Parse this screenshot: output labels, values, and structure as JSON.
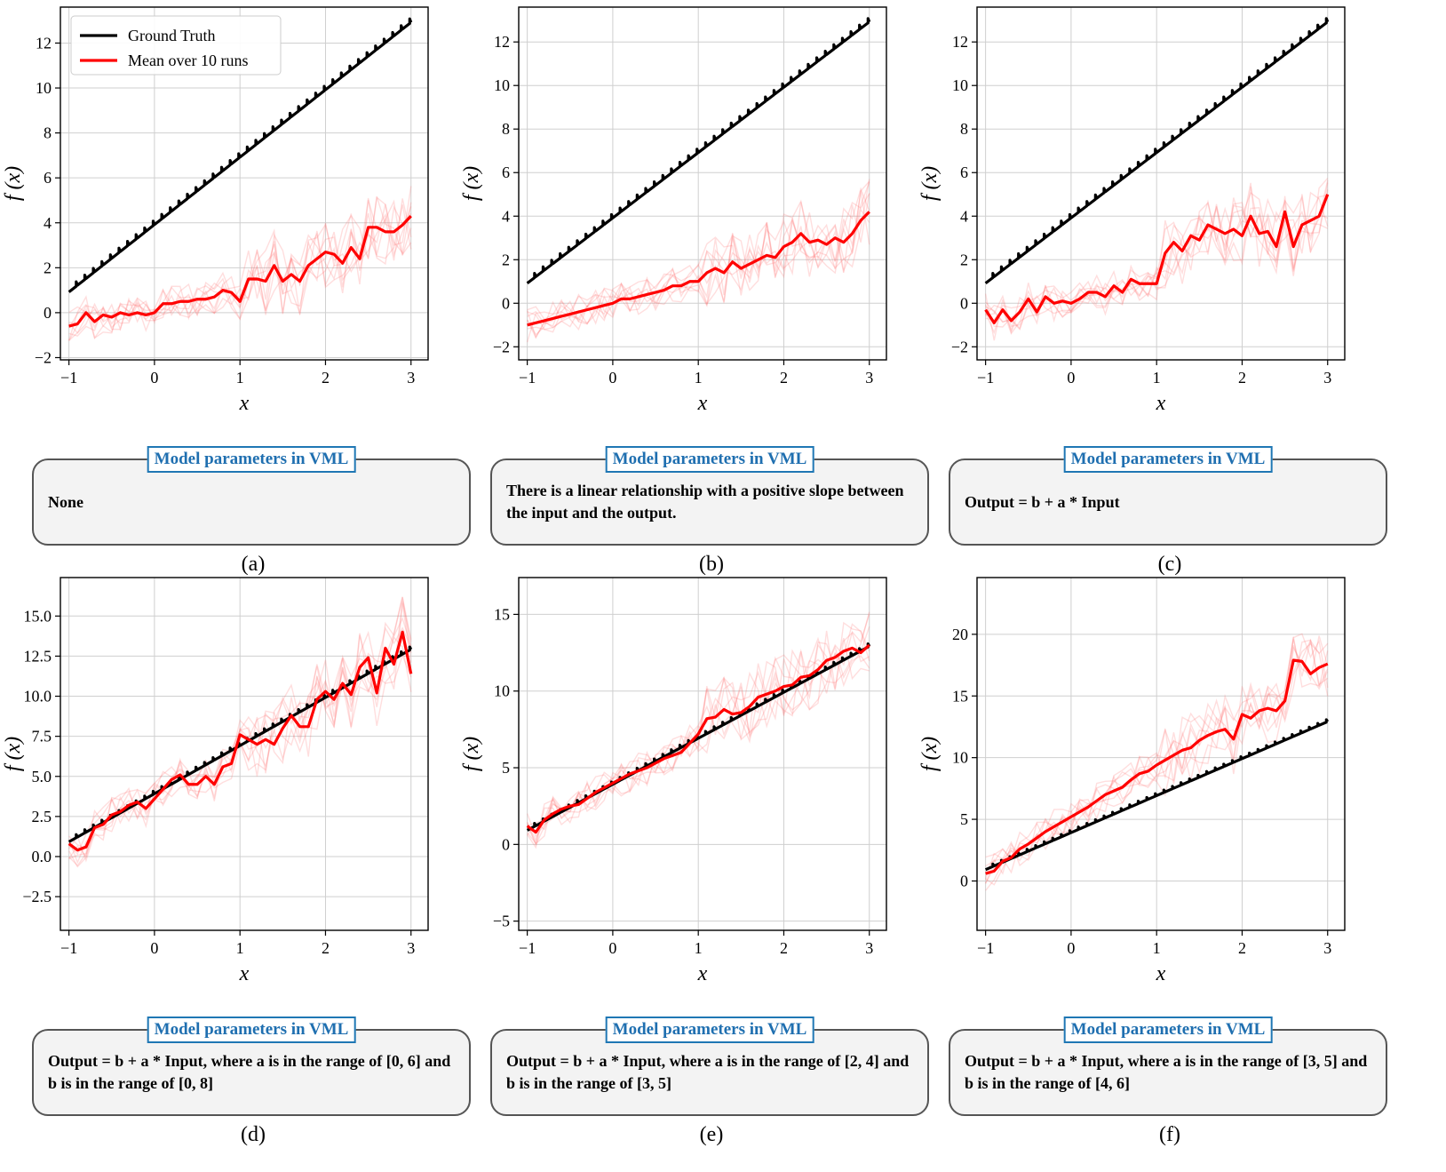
{
  "chart_data": [
    {
      "type": "line",
      "panel": "(a)",
      "xlabel": "x",
      "ylabel": "f (x)",
      "xlim": [
        -1.1,
        3.2
      ],
      "ylim": [
        -2.1,
        13.6
      ],
      "xticks": [
        -1,
        0,
        1,
        2,
        3
      ],
      "yticks": [
        -2,
        0,
        2,
        4,
        6,
        8,
        10,
        12
      ],
      "grid": true,
      "legend": "top-left",
      "legend_entries": [
        "Ground Truth",
        "Mean over 10 runs"
      ],
      "series": [
        {
          "name": "Ground Truth",
          "color": "#000000",
          "x": [
            -1,
            0,
            1,
            2,
            3
          ],
          "y": [
            1,
            4,
            7,
            10,
            13
          ]
        },
        {
          "name": "Mean over 10 runs",
          "color": "#ff0000",
          "x": [
            -1,
            -0.9,
            -0.8,
            -0.7,
            -0.6,
            -0.5,
            -0.4,
            -0.3,
            -0.2,
            -0.1,
            0,
            0.1,
            0.2,
            0.3,
            0.4,
            0.5,
            0.6,
            0.7,
            0.8,
            0.9,
            1.0,
            1.1,
            1.2,
            1.3,
            1.4,
            1.5,
            1.6,
            1.7,
            1.8,
            1.9,
            2.0,
            2.1,
            2.2,
            2.3,
            2.4,
            2.5,
            2.6,
            2.7,
            2.8,
            2.9,
            3.0
          ],
          "y": [
            -0.6,
            -0.5,
            0.0,
            -0.4,
            -0.1,
            -0.2,
            0.0,
            -0.1,
            0.0,
            -0.1,
            0.0,
            0.4,
            0.4,
            0.5,
            0.5,
            0.6,
            0.6,
            0.7,
            1.0,
            0.9,
            0.5,
            1.5,
            1.5,
            1.4,
            2.1,
            1.4,
            1.7,
            1.4,
            2.1,
            2.4,
            2.7,
            2.6,
            2.2,
            2.9,
            2.4,
            3.8,
            3.8,
            3.6,
            3.6,
            3.9,
            4.3
          ]
        }
      ]
    },
    {
      "type": "line",
      "panel": "(b)",
      "xlabel": "x",
      "ylabel": "f (x)",
      "xlim": [
        -1.1,
        3.2
      ],
      "ylim": [
        -2.6,
        13.6
      ],
      "xticks": [
        -1,
        0,
        1,
        2,
        3
      ],
      "yticks": [
        -2,
        0,
        2,
        4,
        6,
        8,
        10,
        12
      ],
      "grid": true,
      "series": [
        {
          "name": "Ground Truth",
          "color": "#000000",
          "x": [
            -1,
            0,
            1,
            2,
            3
          ],
          "y": [
            1,
            4,
            7,
            10,
            13
          ]
        },
        {
          "name": "Mean over 10 runs",
          "color": "#ff0000",
          "x": [
            -1,
            -0.9,
            -0.8,
            -0.7,
            -0.6,
            -0.5,
            -0.4,
            -0.3,
            -0.2,
            -0.1,
            0,
            0.1,
            0.2,
            0.3,
            0.4,
            0.5,
            0.6,
            0.7,
            0.8,
            0.9,
            1.0,
            1.1,
            1.2,
            1.3,
            1.4,
            1.5,
            1.6,
            1.7,
            1.8,
            1.9,
            2.0,
            2.1,
            2.2,
            2.3,
            2.4,
            2.5,
            2.6,
            2.7,
            2.8,
            2.9,
            3.0
          ],
          "y": [
            -1.0,
            -0.9,
            -0.8,
            -0.7,
            -0.6,
            -0.5,
            -0.4,
            -0.3,
            -0.2,
            -0.1,
            0.0,
            0.2,
            0.2,
            0.3,
            0.4,
            0.5,
            0.6,
            0.8,
            0.8,
            1.0,
            1.0,
            1.4,
            1.6,
            1.4,
            1.9,
            1.6,
            1.8,
            2.0,
            2.2,
            2.1,
            2.6,
            2.8,
            3.2,
            2.8,
            2.9,
            2.7,
            3.0,
            2.8,
            3.2,
            3.8,
            4.2
          ]
        }
      ]
    },
    {
      "type": "line",
      "panel": "(c)",
      "xlabel": "x",
      "ylabel": "f (x)",
      "xlim": [
        -1.1,
        3.2
      ],
      "ylim": [
        -2.6,
        13.6
      ],
      "xticks": [
        -1,
        0,
        1,
        2,
        3
      ],
      "yticks": [
        -2,
        0,
        2,
        4,
        6,
        8,
        10,
        12
      ],
      "grid": true,
      "series": [
        {
          "name": "Ground Truth",
          "color": "#000000",
          "x": [
            -1,
            0,
            1,
            2,
            3
          ],
          "y": [
            1,
            4,
            7,
            10,
            13
          ]
        },
        {
          "name": "Mean over 10 runs",
          "color": "#ff0000",
          "x": [
            -1,
            -0.9,
            -0.8,
            -0.7,
            -0.6,
            -0.5,
            -0.4,
            -0.3,
            -0.2,
            -0.1,
            0,
            0.1,
            0.2,
            0.3,
            0.4,
            0.5,
            0.6,
            0.7,
            0.8,
            0.9,
            1.0,
            1.1,
            1.2,
            1.3,
            1.4,
            1.5,
            1.6,
            1.7,
            1.8,
            1.9,
            2.0,
            2.1,
            2.2,
            2.3,
            2.4,
            2.5,
            2.6,
            2.7,
            2.8,
            2.9,
            3.0
          ],
          "y": [
            -0.3,
            -0.9,
            -0.3,
            -0.8,
            -0.4,
            0.2,
            -0.4,
            0.3,
            0.0,
            0.1,
            0.0,
            0.2,
            0.5,
            0.5,
            0.3,
            0.8,
            0.5,
            1.1,
            0.9,
            0.9,
            0.9,
            2.3,
            2.8,
            2.4,
            3.1,
            2.9,
            3.6,
            3.4,
            3.2,
            3.4,
            3.1,
            4.0,
            3.2,
            3.3,
            2.6,
            4.2,
            2.6,
            3.6,
            3.8,
            4.0,
            5.0
          ]
        }
      ]
    },
    {
      "type": "line",
      "panel": "(d)",
      "xlabel": "x",
      "ylabel": "f (x)",
      "xlim": [
        -1.1,
        3.2
      ],
      "ylim": [
        -4.6,
        17.4
      ],
      "xticks": [
        -1,
        0,
        1,
        2,
        3
      ],
      "yticks": [
        -2.5,
        0.0,
        2.5,
        5.0,
        7.5,
        10.0,
        12.5,
        15.0
      ],
      "grid": true,
      "series": [
        {
          "name": "Ground Truth",
          "color": "#000000",
          "x": [
            -1,
            0,
            1,
            2,
            3
          ],
          "y": [
            1,
            4,
            7,
            10,
            13
          ]
        },
        {
          "name": "Mean over 10 runs",
          "color": "#ff0000",
          "x": [
            -1,
            -0.9,
            -0.8,
            -0.7,
            -0.6,
            -0.5,
            -0.4,
            -0.3,
            -0.2,
            -0.1,
            0,
            0.1,
            0.2,
            0.3,
            0.4,
            0.5,
            0.6,
            0.7,
            0.8,
            0.9,
            1.0,
            1.1,
            1.2,
            1.3,
            1.4,
            1.5,
            1.6,
            1.7,
            1.8,
            1.9,
            2.0,
            2.1,
            2.2,
            2.3,
            2.4,
            2.5,
            2.6,
            2.7,
            2.8,
            2.9,
            3.0
          ],
          "y": [
            0.8,
            0.4,
            0.6,
            1.8,
            2.0,
            2.6,
            2.8,
            3.2,
            3.4,
            3.0,
            3.6,
            4.2,
            4.8,
            5.1,
            4.5,
            4.5,
            5.0,
            4.5,
            5.6,
            5.8,
            7.6,
            7.3,
            7.0,
            7.3,
            7.0,
            8.0,
            8.8,
            8.1,
            8.1,
            9.8,
            10.3,
            9.8,
            10.8,
            10.1,
            11.8,
            12.4,
            10.2,
            13.0,
            12.0,
            14.0,
            11.4
          ]
        }
      ]
    },
    {
      "type": "line",
      "panel": "(e)",
      "xlabel": "x",
      "ylabel": "f (x)",
      "xlim": [
        -1.1,
        3.2
      ],
      "ylim": [
        -5.6,
        17.4
      ],
      "xticks": [
        -1,
        0,
        1,
        2,
        3
      ],
      "yticks": [
        -5,
        0,
        5,
        10,
        15
      ],
      "grid": true,
      "series": [
        {
          "name": "Ground Truth",
          "color": "#000000",
          "x": [
            -1,
            0,
            1,
            2,
            3
          ],
          "y": [
            1,
            4,
            7,
            10,
            13
          ]
        },
        {
          "name": "Mean over 10 runs",
          "color": "#ff0000",
          "x": [
            -1,
            -0.9,
            -0.8,
            -0.7,
            -0.6,
            -0.5,
            -0.4,
            -0.3,
            -0.2,
            -0.1,
            0,
            0.1,
            0.2,
            0.3,
            0.4,
            0.5,
            0.6,
            0.7,
            0.8,
            0.9,
            1.0,
            1.1,
            1.2,
            1.3,
            1.4,
            1.5,
            1.6,
            1.7,
            1.8,
            1.9,
            2.0,
            2.1,
            2.2,
            2.3,
            2.4,
            2.5,
            2.6,
            2.7,
            2.8,
            2.9,
            3.0
          ],
          "y": [
            1.2,
            0.8,
            1.6,
            2.0,
            2.3,
            2.5,
            2.6,
            3.0,
            3.4,
            3.7,
            4.0,
            4.3,
            4.6,
            4.8,
            5.0,
            5.3,
            5.6,
            5.8,
            6.0,
            6.6,
            7.2,
            8.2,
            8.3,
            8.8,
            8.5,
            8.6,
            9.0,
            9.6,
            9.8,
            10.0,
            10.3,
            10.4,
            10.9,
            11.0,
            11.4,
            12.0,
            12.2,
            12.6,
            12.8,
            12.5,
            13.0
          ]
        }
      ]
    },
    {
      "type": "line",
      "panel": "(f)",
      "xlabel": "x",
      "ylabel": "f (x)",
      "xlim": [
        -1.1,
        3.2
      ],
      "ylim": [
        -4.0,
        24.6
      ],
      "xticks": [
        -1,
        0,
        1,
        2,
        3
      ],
      "yticks": [
        0,
        5,
        10,
        15,
        20
      ],
      "grid": true,
      "series": [
        {
          "name": "Ground Truth",
          "color": "#000000",
          "x": [
            -1,
            0,
            1,
            2,
            3
          ],
          "y": [
            1,
            4,
            7,
            10,
            13
          ]
        },
        {
          "name": "Mean over 10 runs",
          "color": "#ff0000",
          "x": [
            -1,
            -0.9,
            -0.8,
            -0.7,
            -0.6,
            -0.5,
            -0.4,
            -0.3,
            -0.2,
            -0.1,
            0,
            0.1,
            0.2,
            0.3,
            0.4,
            0.5,
            0.6,
            0.7,
            0.8,
            0.9,
            1.0,
            1.1,
            1.2,
            1.3,
            1.4,
            1.5,
            1.6,
            1.7,
            1.8,
            1.9,
            2.0,
            2.1,
            2.2,
            2.3,
            2.4,
            2.5,
            2.6,
            2.7,
            2.8,
            2.9,
            3.0
          ],
          "y": [
            0.6,
            0.8,
            1.6,
            1.9,
            2.6,
            3.0,
            3.5,
            4.0,
            4.4,
            4.8,
            5.2,
            5.6,
            6.0,
            6.5,
            7.0,
            7.3,
            7.6,
            8.2,
            8.7,
            8.9,
            9.4,
            9.8,
            10.2,
            10.6,
            10.8,
            11.4,
            11.8,
            12.1,
            12.3,
            11.5,
            13.5,
            13.2,
            13.8,
            14.0,
            13.8,
            14.6,
            17.9,
            17.8,
            16.8,
            17.3,
            17.6
          ]
        }
      ]
    }
  ],
  "vml_boxes": [
    {
      "title": "Model parameters in VML",
      "text": "None",
      "label": "(a)"
    },
    {
      "title": "Model parameters in VML",
      "text": "There is a linear relationship with a positive slope between the input and the output.",
      "label": "(b)"
    },
    {
      "title": "Model parameters in VML",
      "text": "Output = b + a * Input",
      "label": "(c)"
    },
    {
      "title": "Model parameters in VML",
      "text": "Output = b + a * Input, where a is in the range of [0, 6] and b is in the range of [0, 8]",
      "label": "(d)"
    },
    {
      "title": "Model parameters in VML",
      "text": "Output = b + a * Input, where a is in the range of [2, 4] and b is in the range of [3, 5]",
      "label": "(e)"
    },
    {
      "title": "Model parameters in VML",
      "text": "Output = b + a * Input, where a is in the range of [3, 5] and b is in the range of [4, 6]",
      "label": "(f)"
    }
  ]
}
